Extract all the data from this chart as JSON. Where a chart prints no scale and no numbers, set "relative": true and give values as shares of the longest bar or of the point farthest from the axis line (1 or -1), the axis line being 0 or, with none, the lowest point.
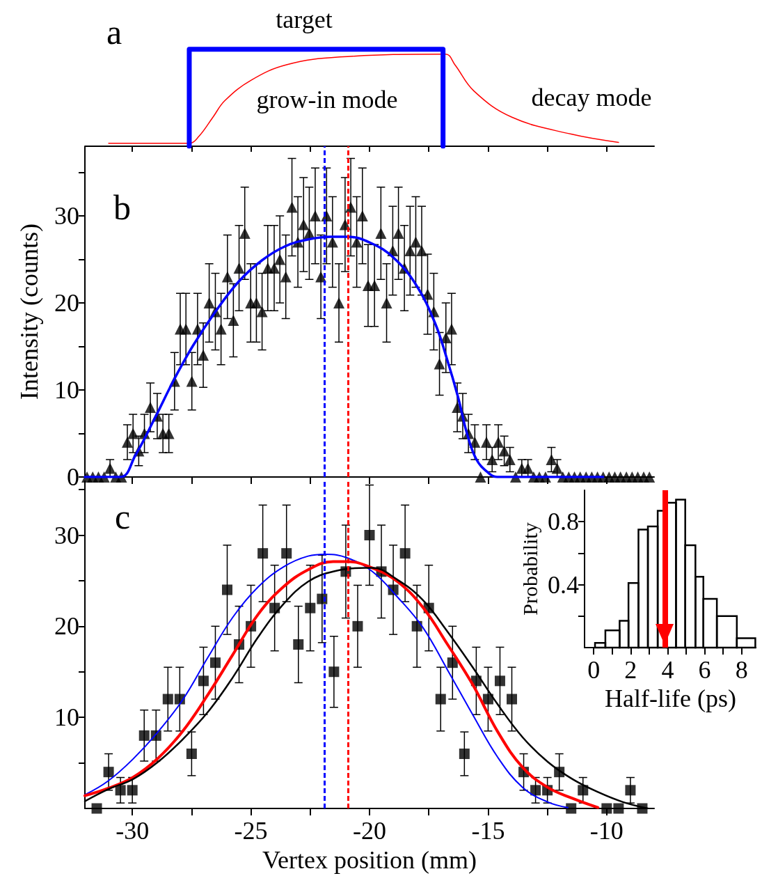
{
  "chart_data": [
    {
      "type": "line",
      "title": "a",
      "relative": true,
      "xlim": [
        -32,
        -8
      ],
      "xticks": [
        {
          "value": -30,
          "label": null
        },
        {
          "value": -27.5,
          "label": null
        },
        {
          "value": -25,
          "label": null
        },
        {
          "value": -22.5,
          "label": null
        },
        {
          "value": -20,
          "label": null
        },
        {
          "value": -17.5,
          "label": null
        },
        {
          "value": -15,
          "label": null
        },
        {
          "value": -12.5,
          "label": null
        },
        {
          "value": -10,
          "label": null
        }
      ],
      "tick_labels": false,
      "series": [
        {
          "color": "#ff0000",
          "x": [
            -31,
            -27.6,
            -27.2,
            -26.6,
            -26.1,
            -25,
            -23.5,
            -21.25,
            -16.8,
            -16.4,
            -15.6,
            -14,
            -11.5,
            -9.5
          ],
          "values": [
            0.03,
            0.03,
            0.1,
            0.3,
            0.47,
            0.68,
            0.84,
            0.92,
            0.95,
            0.84,
            0.57,
            0.3,
            0.125,
            0.04
          ]
        },
        {
          "color": "#0000ff",
          "x": [
            -27.6,
            -27.6,
            -16.9,
            -16.9
          ],
          "values": [
            0,
            1,
            1,
            0
          ]
        }
      ],
      "annotations": [
        "target",
        "grow-in mode",
        "decay mode"
      ]
    },
    {
      "type": "scatter",
      "title": "b",
      "ylabel": "Intensity (counts)",
      "xlim": [
        -32,
        -8
      ],
      "ylim": [
        0,
        38
      ],
      "tick_labels": "y",
      "xticks": [
        {
          "value": -30,
          "label": null
        },
        {
          "value": -27.5,
          "label": null
        },
        {
          "value": -25,
          "label": null
        },
        {
          "value": -22.5,
          "label": null
        },
        {
          "value": -20,
          "label": null
        },
        {
          "value": -17.5,
          "label": null
        },
        {
          "value": -15,
          "label": null
        },
        {
          "value": -12.5,
          "label": null
        },
        {
          "value": -10,
          "label": null
        }
      ],
      "yticks": [
        0,
        {
          "value": 5,
          "label": null
        },
        10,
        {
          "value": 15,
          "label": null
        },
        20,
        {
          "value": 25,
          "label": null
        },
        30,
        {
          "value": 35,
          "label": null
        }
      ],
      "series": [
        {
          "marker": "triangle",
          "color": "#000000",
          "x": [
            -31.91,
            -31.67,
            -31.43,
            -31.19,
            -30.94,
            -30.7,
            -30.46,
            -30.21,
            -29.97,
            -29.73,
            -29.49,
            -29.24,
            -28.95,
            -28.71,
            -28.46,
            -28.22,
            -27.98,
            -27.74,
            -27.49,
            -27.25,
            -27.01,
            -26.76,
            -26.5,
            -26.26,
            -25.99,
            -25.74,
            -25.5,
            -25.26,
            -25.01,
            -24.77,
            -24.53,
            -24.29,
            -24.02,
            -23.78,
            -23.53,
            -23.27,
            -23.02,
            -22.78,
            -22.54,
            -22.29,
            -22.05,
            -21.81,
            -21.56,
            -21.29,
            -21.03,
            -20.79,
            -20.54,
            -20.3,
            -20.06,
            -19.79,
            -19.52,
            -19.28,
            -19.02,
            -18.78,
            -18.53,
            -18.29,
            -18.05,
            -17.8,
            -17.55,
            -17.29,
            -17.05,
            -16.78,
            -16.54,
            -16.3,
            -16.07,
            -15.83,
            -15.56,
            -15.32,
            -15.07,
            -14.83,
            -14.57,
            -14.32,
            -14.08,
            -13.84,
            -13.58,
            -13.32,
            -13.08,
            -12.84,
            -12.58,
            -12.33,
            -12.09,
            -11.85,
            -11.6,
            -11.36,
            -11.12,
            -10.87,
            -10.63,
            -10.39,
            -10.15,
            -9.9,
            -9.66,
            -9.42,
            -9.17,
            -8.93,
            -8.69,
            -8.44,
            -8.2
          ],
          "values": [
            0,
            0,
            0,
            0,
            1,
            0,
            0,
            4,
            5,
            3,
            5,
            8,
            7,
            5,
            5,
            11,
            17,
            17,
            11,
            17,
            14,
            20,
            19,
            17,
            23,
            18,
            24,
            28,
            20,
            20,
            19,
            24,
            24,
            25,
            23,
            31,
            27,
            29,
            28,
            30,
            23,
            30,
            27,
            20,
            29,
            31,
            27,
            30,
            22,
            22,
            28,
            20,
            26,
            28,
            24,
            26,
            27,
            26,
            21,
            19,
            13,
            16,
            17,
            8,
            7,
            5,
            4,
            0,
            4,
            2,
            4,
            3,
            2,
            0,
            1,
            1,
            0,
            0,
            0,
            2,
            1,
            0,
            0,
            0,
            0,
            0,
            0,
            0,
            0,
            0,
            0,
            0,
            0,
            0,
            0,
            0,
            0
          ],
          "errors": [
            null,
            null,
            null,
            null,
            1,
            null,
            null,
            2,
            2.2,
            1.7,
            2.2,
            2.8,
            2.6,
            2.2,
            2.2,
            3.3,
            4.1,
            4.1,
            3.3,
            4.1,
            3.7,
            4.5,
            4.4,
            4.1,
            4.8,
            4.2,
            4.9,
            5.3,
            4.5,
            4.5,
            4.4,
            4.9,
            4.9,
            5,
            4.8,
            5.6,
            5.2,
            5.4,
            5.3,
            5.5,
            4.8,
            5.5,
            5.2,
            4.5,
            5.4,
            5.6,
            5.2,
            5.5,
            4.7,
            4.7,
            5.3,
            4.5,
            5.1,
            5.3,
            4.9,
            5.1,
            5.2,
            5.1,
            4.6,
            4.4,
            3.6,
            4,
            4.1,
            2.8,
            2.6,
            2.2,
            2,
            null,
            2,
            1.4,
            2,
            1.7,
            1.4,
            null,
            1,
            1,
            null,
            null,
            null,
            1.4,
            1,
            null,
            null,
            null,
            null,
            null,
            null,
            null,
            null,
            null,
            null,
            null,
            null,
            null,
            null,
            null,
            null
          ]
        },
        {
          "type": "line",
          "marker": "none",
          "color": "#0000ff",
          "x": [
            -32,
            -30.5,
            -29.87,
            -29.1,
            -28.22,
            -27.44,
            -26.47,
            -25.5,
            -24.53,
            -23.56,
            -22.58,
            -21.61,
            -20.93,
            -19.96,
            -18.99,
            -18.02,
            -17.24,
            -16.75,
            -16.27,
            -15.88,
            -15.49,
            -15.0,
            -14.62,
            -10.15
          ],
          "values": [
            0,
            0,
            2.5,
            6.5,
            11.3,
            15.1,
            19.1,
            22.5,
            24.9,
            26.5,
            27.3,
            27.6,
            27.6,
            26.9,
            25.2,
            22,
            17.7,
            13.7,
            9.2,
            4.9,
            2,
            0.5,
            0,
            0
          ]
        }
      ],
      "ref_lines": [
        {
          "axis": "x",
          "value": -21.9,
          "color": "#0000ff",
          "line_style": "dashed"
        },
        {
          "axis": "x",
          "value": -20.9,
          "color": "#ff0000",
          "line_style": "dashed"
        }
      ]
    },
    {
      "type": "scatter",
      "title": "c",
      "xlabel": "Vertex position (mm)",
      "xlim": [
        -32,
        -8
      ],
      "ylim": [
        0,
        36
      ],
      "xticks": [
        -30,
        {
          "value": -27.5,
          "label": null
        },
        -25,
        {
          "value": -22.5,
          "label": null
        },
        -20,
        {
          "value": -17.5,
          "label": null
        },
        -15,
        {
          "value": -12.5,
          "label": null
        },
        -10
      ],
      "yticks": [
        {
          "value": 5,
          "label": null
        },
        10,
        {
          "value": 15,
          "label": null
        },
        20,
        {
          "value": 25,
          "label": null
        },
        30,
        {
          "value": 35,
          "label": null
        }
      ],
      "series": [
        {
          "marker": "square",
          "color": "#000000",
          "x": [
            -31.5,
            -31,
            -30.5,
            -30,
            -29.5,
            -29,
            -28.5,
            -28,
            -27.5,
            -27,
            -26.5,
            -26,
            -25.5,
            -25,
            -24.5,
            -24,
            -23.5,
            -23,
            -22.5,
            -22,
            -21.5,
            -21,
            -20.5,
            -20,
            -19.5,
            -19,
            -18.5,
            -18,
            -17.5,
            -17,
            -16.5,
            -16,
            -15.5,
            -15,
            -14.5,
            -14,
            -13.5,
            -13,
            -12.5,
            -12,
            -11.5,
            -11,
            -10,
            -9.5,
            -9,
            -8.5
          ],
          "values": [
            0,
            4,
            2,
            2,
            8,
            8,
            12,
            12,
            6,
            14,
            16,
            24,
            18,
            20,
            28,
            22,
            28,
            18,
            22,
            23,
            15,
            26,
            20,
            30,
            26,
            24,
            28,
            20,
            22,
            12,
            16,
            6,
            14,
            12,
            14,
            12,
            4,
            2,
            2,
            4,
            0,
            2,
            0,
            0,
            2,
            0
          ],
          "errors": [
            null,
            2,
            1.4,
            1.4,
            2.8,
            2.8,
            3.5,
            3.5,
            2.4,
            3.7,
            4,
            4.9,
            4.2,
            4.5,
            5.3,
            4.7,
            5.3,
            4.2,
            4.7,
            4.8,
            3.9,
            5.1,
            4.5,
            5.5,
            5.1,
            4.9,
            5.3,
            4.5,
            4.7,
            3.5,
            4,
            2.4,
            3.7,
            3.5,
            3.7,
            3.5,
            2,
            1.4,
            1.4,
            2,
            null,
            1.4,
            null,
            null,
            1.4,
            null
          ]
        },
        {
          "type": "line",
          "marker": "none",
          "color": "#0000ff",
          "x": [
            -32,
            -31.03,
            -29.98,
            -28.92,
            -27.87,
            -26.81,
            -25.76,
            -24.7,
            -23.64,
            -22.59,
            -21.85,
            -20.93,
            -19.88,
            -18.82,
            -17.76,
            -16.71,
            -15.65,
            -14.59,
            -13.54,
            -12.48,
            -11.64
          ],
          "values": [
            1.5,
            3,
            5.4,
            8.4,
            11.95,
            16.6,
            21,
            24.3,
            26.5,
            27.7,
            27.9,
            27.5,
            26,
            23.2,
            19.9,
            15.2,
            10.3,
            5.6,
            2.3,
            0.7,
            0.1
          ]
        },
        {
          "type": "line",
          "marker": "none",
          "color": "#ff0000",
          "x": [
            -32,
            -31.03,
            -29.98,
            -28.92,
            -27.87,
            -26.81,
            -25.76,
            -24.7,
            -23.64,
            -22.59,
            -21.53,
            -20.95,
            -19.88,
            -18.82,
            -17.76,
            -16.71,
            -15.65,
            -14.59,
            -13.54,
            -12.48,
            -11.43,
            -10.37
          ],
          "values": [
            1.4,
            2.2,
            3.4,
            5.5,
            8.5,
            12.5,
            16.9,
            21.3,
            24.3,
            26.2,
            27.1,
            27.1,
            26.4,
            24.9,
            22.1,
            18,
            13.6,
            8.4,
            4.5,
            2.3,
            1.1,
            0.1
          ]
        },
        {
          "type": "line",
          "marker": "none",
          "color": "#000000",
          "x": [
            -32,
            -31.03,
            -29.98,
            -28.92,
            -27.87,
            -26.81,
            -25.76,
            -24.7,
            -23.64,
            -22.59,
            -21.53,
            -20.15,
            -19.88,
            -18.82,
            -17.76,
            -16.71,
            -15.65,
            -14.59,
            -13.54,
            -12.48,
            -11.43,
            -10.37,
            -9.31,
            -8.26
          ],
          "values": [
            0.8,
            2.1,
            3.2,
            5.1,
            7.6,
            10.6,
            14.4,
            18.8,
            22.4,
            24.9,
            26,
            26.4,
            26.4,
            25.1,
            22.9,
            19.4,
            15.5,
            11.4,
            7.8,
            5.1,
            3.2,
            1.8,
            0.7,
            0
          ]
        }
      ],
      "ref_lines": [
        {
          "axis": "x",
          "value": -21.9,
          "color": "#0000ff",
          "line_style": "dashed"
        },
        {
          "axis": "x",
          "value": -20.9,
          "color": "#ff0000",
          "line_style": "dashed"
        }
      ]
    },
    {
      "type": "histogram",
      "xlabel": "Half-life (ps)",
      "ylabel": "Probability",
      "color": "#000000",
      "xlim": [
        -0.5,
        8.8
      ],
      "ylim": [
        0,
        1
      ],
      "xticks": [
        0,
        {
          "value": 1,
          "label": null
        },
        2,
        {
          "value": 3,
          "label": null
        },
        4,
        {
          "value": 5,
          "label": null
        },
        6,
        {
          "value": 7,
          "label": null
        },
        8
      ],
      "yticks": [
        {
          "value": 0.2,
          "label": null
        },
        0.4,
        {
          "value": 0.6,
          "label": null
        },
        0.8
      ],
      "bins": [
        0.07,
        0.63,
        1.4,
        1.88,
        2.42,
        2.93,
        3.46,
        3.96,
        4.45,
        4.95,
        5.5,
        5.93,
        6.66,
        7.74,
        8.74
      ],
      "values": [
        0.03,
        0.11,
        0.17,
        0.41,
        0.75,
        0.77,
        0.87,
        0.92,
        0.94,
        0.65,
        0.45,
        0.31,
        0.2,
        0.06
      ],
      "ref_lines": [
        {
          "axis": "x",
          "value": 3.85,
          "color": "#ff0000"
        }
      ]
    }
  ]
}
